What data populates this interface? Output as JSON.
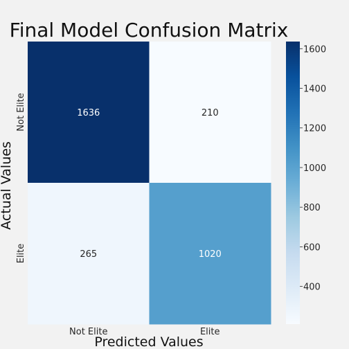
{
  "chart_data": {
    "type": "heatmap",
    "title": "Final Model Confusion Matrix",
    "xlabel": "Predicted Values",
    "ylabel": "Actual Values",
    "x_categories": [
      "Not Elite",
      "Elite"
    ],
    "y_categories": [
      "Not Elite",
      "Elite"
    ],
    "values": [
      [
        1636,
        210
      ],
      [
        265,
        1020
      ]
    ],
    "colormap": "Blues",
    "colorbar": {
      "range": [
        210,
        1636
      ],
      "ticks": [
        400,
        600,
        800,
        1000,
        1200,
        1400,
        1600
      ]
    },
    "colors": {
      "background": "#f2f2f2",
      "low": "#f7fbff",
      "high": "#08306b"
    }
  }
}
